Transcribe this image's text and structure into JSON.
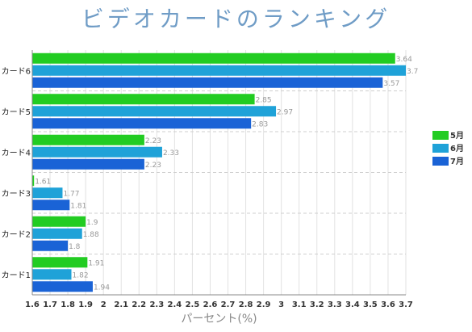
{
  "chart_data": {
    "type": "bar",
    "orientation": "horizontal",
    "title": "ビデオカードのランキング",
    "xlabel": "パーセント(%)",
    "ylabel": "",
    "xlim": [
      1.6,
      3.7
    ],
    "xticks": [
      "1.6",
      "1.7",
      "1.8",
      "1.9",
      "2",
      "2.1",
      "2.2",
      "2.3",
      "2.4",
      "2.5",
      "2.6",
      "2.7",
      "2.8",
      "2.9",
      "3",
      "3.1",
      "3.2",
      "3.3",
      "3.4",
      "3.5",
      "3.6",
      "3.7"
    ],
    "categories": [
      "カード6",
      "カード5",
      "カード4",
      "カード3",
      "カード2",
      "カード1"
    ],
    "series": [
      {
        "name": "5月",
        "color": "#22cc22",
        "values": [
          3.64,
          2.85,
          2.23,
          1.61,
          1.9,
          1.91
        ]
      },
      {
        "name": "6月",
        "color": "#1fa2d8",
        "values": [
          3.7,
          2.97,
          2.33,
          1.77,
          1.88,
          1.82
        ]
      },
      {
        "name": "7月",
        "color": "#1a63d6",
        "values": [
          3.57,
          2.83,
          2.23,
          1.81,
          1.8,
          1.94
        ]
      }
    ],
    "grid": {
      "vertical": true,
      "horizontal_dashed": true
    },
    "legend_position": "right"
  }
}
